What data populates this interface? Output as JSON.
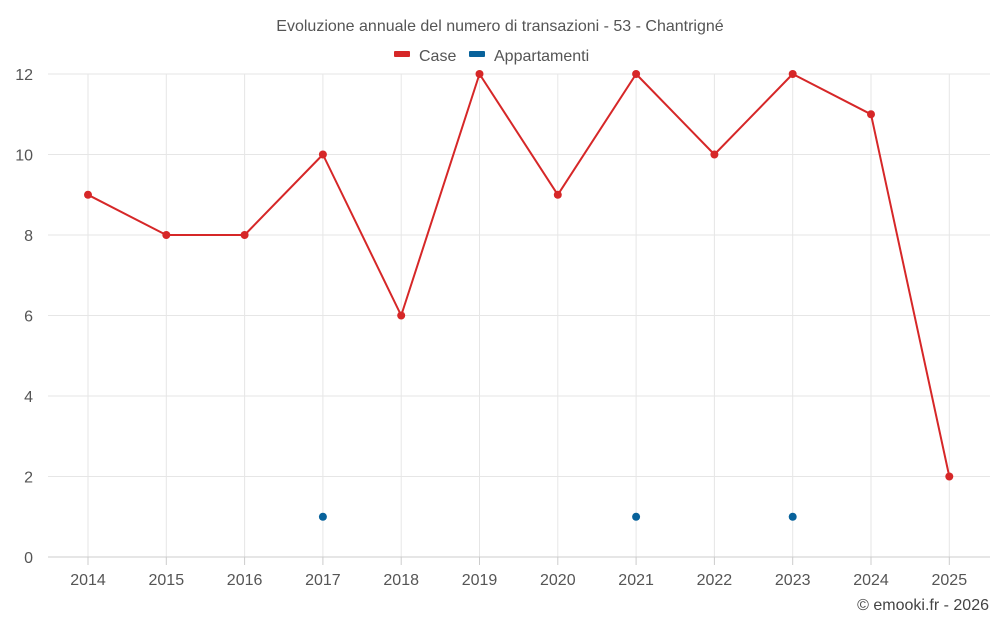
{
  "chart_data": {
    "type": "line",
    "title": "Evoluzione annuale del numero di transazioni - 53 - Chantrigné",
    "xlabel": "",
    "ylabel": "",
    "categories": [
      "2014",
      "2015",
      "2016",
      "2017",
      "2018",
      "2019",
      "2020",
      "2021",
      "2022",
      "2023",
      "2024",
      "2025"
    ],
    "ylim": [
      0,
      12
    ],
    "yticks": [
      0,
      2,
      4,
      6,
      8,
      10,
      12
    ],
    "grid": true,
    "legend_position": "top-center",
    "series": [
      {
        "name": "Case",
        "color": "#d62728",
        "line": true,
        "values": [
          9,
          8,
          8,
          10,
          6,
          12,
          9,
          12,
          10,
          12,
          11,
          2
        ]
      },
      {
        "name": "Appartamenti",
        "color": "#08629b",
        "line": false,
        "values": [
          null,
          null,
          null,
          1,
          null,
          null,
          null,
          1,
          null,
          1,
          null,
          null
        ]
      }
    ]
  },
  "credit": "© emooki.fr - 2026"
}
